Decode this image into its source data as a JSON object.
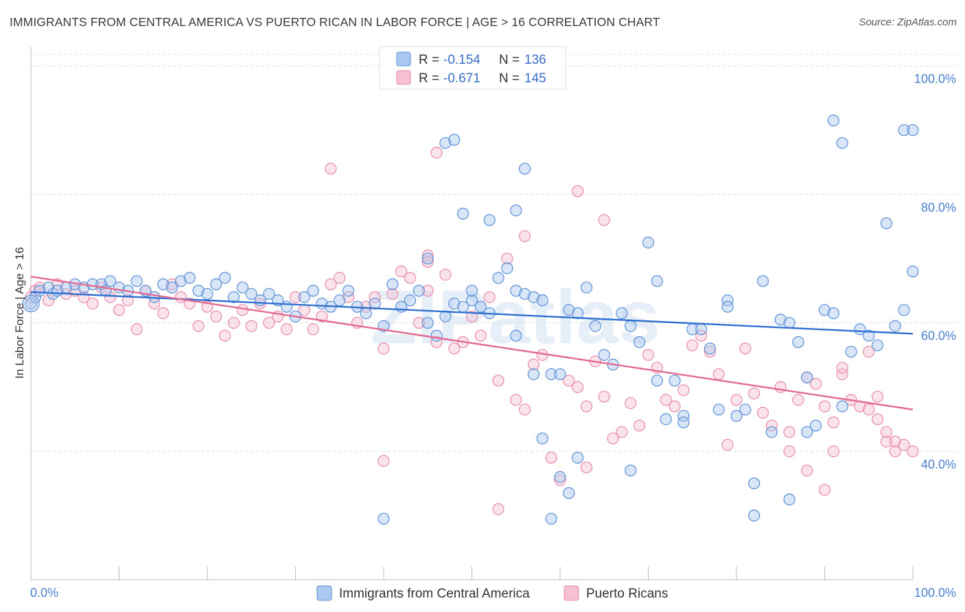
{
  "title": "IMMIGRANTS FROM CENTRAL AMERICA VS PUERTO RICAN IN LABOR FORCE | AGE > 16 CORRELATION CHART",
  "source": "Source: ZipAtlas.com",
  "watermark": "ZIPatlas",
  "colors": {
    "blue_fill": "#aac8f0",
    "blue_stroke": "#5a8fd6",
    "blue_line": "#2f6fcf",
    "pink_fill": "#f7c0d2",
    "pink_stroke": "#e88aa8",
    "pink_line": "#e2698f",
    "grid": "#dddddd",
    "tick_text": "#4a7fd0"
  },
  "legend": {
    "rows": [
      {
        "r_label": "R =",
        "r_value": "-0.154",
        "n_label": "N =",
        "n_value": "136"
      },
      {
        "r_label": "R =",
        "r_value": "-0.671",
        "n_label": "N =",
        "n_value": "145"
      }
    ]
  },
  "bottom_legend": {
    "items": [
      "Immigrants from Central America",
      "Puerto Ricans"
    ]
  },
  "chart_data": {
    "type": "scatter",
    "title": "IMMIGRANTS FROM CENTRAL AMERICA VS PUERTO RICAN IN LABOR FORCE | AGE > 16 CORRELATION CHART",
    "xlabel": "",
    "ylabel": "In Labor Force | Age > 16",
    "xlim": [
      0,
      100
    ],
    "ylim": [
      20,
      103
    ],
    "x_tick_labels": [
      "0.0%",
      "100.0%"
    ],
    "y_ticks": [
      40,
      60,
      80,
      100
    ],
    "y_tick_labels": [
      "40.0%",
      "60.0%",
      "80.0%",
      "100.0%"
    ],
    "series": [
      {
        "name": "Immigrants from Central America",
        "color": "blue",
        "trend": {
          "x": [
            0,
            100
          ],
          "y": [
            64.8,
            58.3
          ]
        },
        "points": [
          [
            0,
            63
          ],
          [
            0.5,
            64
          ],
          [
            1,
            65
          ],
          [
            2,
            65.5
          ],
          [
            2.5,
            64.5
          ],
          [
            3,
            65
          ],
          [
            4,
            65.5
          ],
          [
            5,
            66
          ],
          [
            6,
            65.5
          ],
          [
            7,
            66
          ],
          [
            8,
            66
          ],
          [
            8.5,
            65
          ],
          [
            9,
            66.5
          ],
          [
            10,
            65.5
          ],
          [
            11,
            65
          ],
          [
            12,
            66.5
          ],
          [
            13,
            65
          ],
          [
            14,
            64
          ],
          [
            15,
            66
          ],
          [
            16,
            65.5
          ],
          [
            17,
            66.5
          ],
          [
            18,
            67
          ],
          [
            19,
            65
          ],
          [
            20,
            64.5
          ],
          [
            21,
            66
          ],
          [
            22,
            67
          ],
          [
            23,
            64
          ],
          [
            24,
            65.5
          ],
          [
            25,
            64.5
          ],
          [
            26,
            63.5
          ],
          [
            27,
            64.5
          ],
          [
            28,
            63.5
          ],
          [
            29,
            62.5
          ],
          [
            30,
            61
          ],
          [
            31,
            64
          ],
          [
            32,
            65
          ],
          [
            33,
            63
          ],
          [
            34,
            62.5
          ],
          [
            35,
            63.5
          ],
          [
            36,
            65
          ],
          [
            37,
            62.5
          ],
          [
            38,
            61.5
          ],
          [
            39,
            63
          ],
          [
            40,
            59.5
          ],
          [
            41,
            66
          ],
          [
            42,
            62.5
          ],
          [
            43,
            63.5
          ],
          [
            44,
            65
          ],
          [
            45,
            60
          ],
          [
            46,
            58
          ],
          [
            47,
            61
          ],
          [
            48,
            63
          ],
          [
            49,
            62.5
          ],
          [
            50,
            63.5
          ],
          [
            51,
            62.5
          ],
          [
            52,
            61.5
          ],
          [
            53,
            67
          ],
          [
            54,
            68.5
          ],
          [
            55,
            65
          ],
          [
            56,
            64.5
          ],
          [
            57,
            64
          ],
          [
            58,
            63.5
          ],
          [
            59,
            52
          ],
          [
            60,
            52
          ],
          [
            61,
            62
          ],
          [
            62,
            61.5
          ],
          [
            63,
            65.5
          ],
          [
            64,
            59.5
          ],
          [
            65,
            55
          ],
          [
            66,
            53.5
          ],
          [
            67,
            61.5
          ],
          [
            68,
            59.5
          ],
          [
            69,
            57
          ],
          [
            70,
            72.5
          ],
          [
            71,
            51
          ],
          [
            72,
            45
          ],
          [
            73,
            51
          ],
          [
            74,
            45.5
          ],
          [
            75,
            59
          ],
          [
            76,
            59
          ],
          [
            77,
            56
          ],
          [
            78,
            46.5
          ],
          [
            79,
            63.5
          ],
          [
            80,
            45.5
          ],
          [
            81,
            46.5
          ],
          [
            82,
            30
          ],
          [
            83,
            66.5
          ],
          [
            84,
            43
          ],
          [
            85,
            60.5
          ],
          [
            86,
            60
          ],
          [
            87,
            57
          ],
          [
            88,
            51.5
          ],
          [
            89,
            44
          ],
          [
            90,
            62
          ],
          [
            91,
            61.5
          ],
          [
            92,
            47
          ],
          [
            93,
            55.5
          ],
          [
            94,
            59
          ],
          [
            95,
            58
          ],
          [
            96,
            56.5
          ],
          [
            97,
            75.5
          ],
          [
            98,
            59.5
          ],
          [
            99,
            90
          ],
          [
            100,
            90
          ],
          [
            47,
            88
          ],
          [
            49,
            77
          ],
          [
            55,
            77.5
          ],
          [
            56,
            84
          ],
          [
            45,
            70
          ],
          [
            52,
            76
          ],
          [
            48,
            88.5
          ],
          [
            50,
            65
          ],
          [
            55,
            58
          ],
          [
            57,
            52
          ],
          [
            58,
            42
          ],
          [
            60,
            36
          ],
          [
            61,
            33.5
          ],
          [
            62,
            39
          ],
          [
            68,
            37
          ],
          [
            40,
            29.5
          ],
          [
            59,
            29.5
          ],
          [
            71,
            66.5
          ],
          [
            74,
            44.5
          ],
          [
            79,
            62.5
          ],
          [
            82,
            35
          ],
          [
            86,
            32.5
          ],
          [
            92,
            88
          ],
          [
            88,
            43
          ],
          [
            91,
            91.5
          ],
          [
            99,
            62
          ],
          [
            100,
            68
          ]
        ]
      },
      {
        "name": "Puerto Ricans",
        "color": "pink",
        "trend": {
          "x": [
            0,
            100
          ],
          "y": [
            67.2,
            46.5
          ]
        },
        "points": [
          [
            0,
            64
          ],
          [
            0.5,
            65
          ],
          [
            1,
            65.5
          ],
          [
            2,
            63.5
          ],
          [
            3,
            66
          ],
          [
            4,
            64.5
          ],
          [
            5,
            65
          ],
          [
            6,
            64
          ],
          [
            7,
            63
          ],
          [
            8,
            65.5
          ],
          [
            9,
            64
          ],
          [
            10,
            62
          ],
          [
            11,
            63.5
          ],
          [
            12,
            59
          ],
          [
            13,
            65
          ],
          [
            14,
            63
          ],
          [
            15,
            61.5
          ],
          [
            16,
            66
          ],
          [
            17,
            64
          ],
          [
            18,
            63
          ],
          [
            19,
            59.5
          ],
          [
            20,
            62.5
          ],
          [
            21,
            61
          ],
          [
            22,
            58
          ],
          [
            23,
            60
          ],
          [
            24,
            62
          ],
          [
            25,
            59.5
          ],
          [
            26,
            63
          ],
          [
            27,
            60
          ],
          [
            28,
            61
          ],
          [
            29,
            59
          ],
          [
            30,
            64
          ],
          [
            31,
            62
          ],
          [
            32,
            59
          ],
          [
            33,
            61
          ],
          [
            34,
            66
          ],
          [
            35,
            67
          ],
          [
            36,
            64
          ],
          [
            37,
            60
          ],
          [
            38,
            62.5
          ],
          [
            39,
            64
          ],
          [
            40,
            56
          ],
          [
            41,
            64.5
          ],
          [
            42,
            68
          ],
          [
            43,
            67
          ],
          [
            44,
            60
          ],
          [
            45,
            65
          ],
          [
            46,
            57
          ],
          [
            47,
            67.5
          ],
          [
            48,
            56
          ],
          [
            49,
            57
          ],
          [
            50,
            61
          ],
          [
            51,
            58
          ],
          [
            52,
            64
          ],
          [
            53,
            51
          ],
          [
            54,
            70
          ],
          [
            55,
            48
          ],
          [
            56,
            46.5
          ],
          [
            57,
            53.5
          ],
          [
            58,
            55
          ],
          [
            59,
            39
          ],
          [
            60,
            35.5
          ],
          [
            61,
            51
          ],
          [
            62,
            50
          ],
          [
            63,
            47
          ],
          [
            64,
            54
          ],
          [
            65,
            48.5
          ],
          [
            66,
            42
          ],
          [
            67,
            43
          ],
          [
            68,
            47.5
          ],
          [
            69,
            44
          ],
          [
            70,
            55
          ],
          [
            71,
            53
          ],
          [
            72,
            48
          ],
          [
            73,
            47
          ],
          [
            74,
            49.5
          ],
          [
            75,
            56.5
          ],
          [
            76,
            58
          ],
          [
            77,
            55.5
          ],
          [
            78,
            52
          ],
          [
            79,
            41
          ],
          [
            80,
            48
          ],
          [
            81,
            56
          ],
          [
            82,
            49
          ],
          [
            83,
            46
          ],
          [
            84,
            44
          ],
          [
            85,
            50
          ],
          [
            86,
            43
          ],
          [
            87,
            48
          ],
          [
            88,
            51.5
          ],
          [
            89,
            50.5
          ],
          [
            90,
            47
          ],
          [
            91,
            44.5
          ],
          [
            92,
            52
          ],
          [
            93,
            48
          ],
          [
            94,
            47
          ],
          [
            95,
            46.5
          ],
          [
            96,
            45
          ],
          [
            97,
            43
          ],
          [
            98,
            41.5
          ],
          [
            99,
            41
          ],
          [
            100,
            40
          ],
          [
            34,
            84
          ],
          [
            46,
            86.5
          ],
          [
            62,
            80.5
          ],
          [
            65,
            76
          ],
          [
            56,
            73.5
          ],
          [
            45,
            70.5
          ],
          [
            45,
            69.5
          ],
          [
            40,
            38.5
          ],
          [
            63,
            37.5
          ],
          [
            53,
            31
          ],
          [
            97,
            41.5
          ],
          [
            96,
            48.5
          ],
          [
            95,
            55.5
          ],
          [
            91,
            40
          ],
          [
            88,
            37
          ],
          [
            90,
            34
          ],
          [
            86,
            40
          ],
          [
            92,
            53
          ],
          [
            98,
            40
          ]
        ]
      }
    ]
  }
}
